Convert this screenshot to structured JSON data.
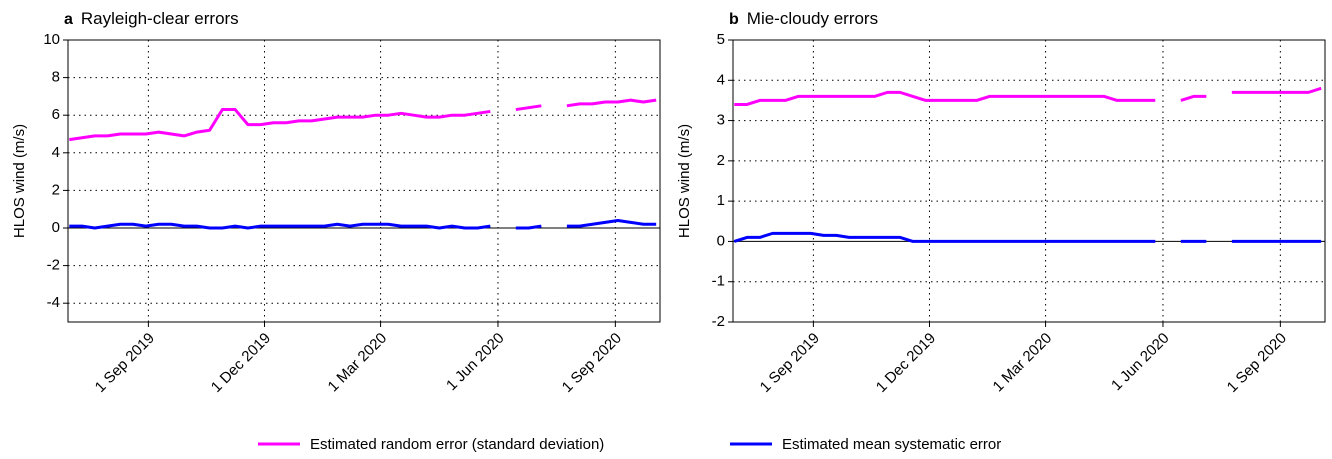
{
  "chart_data": [
    {
      "type": "line",
      "panel_label": "a",
      "title": "Rayleigh-clear errors",
      "ylabel": "HLOS wind (m/s)",
      "x": [
        "2019-07-01",
        "2019-07-11",
        "2019-07-21",
        "2019-07-31",
        "2019-08-10",
        "2019-08-20",
        "2019-08-30",
        "2019-09-09",
        "2019-09-19",
        "2019-09-29",
        "2019-10-09",
        "2019-10-19",
        "2019-10-29",
        "2019-11-08",
        "2019-11-18",
        "2019-11-28",
        "2019-12-08",
        "2019-12-18",
        "2019-12-28",
        "2020-01-07",
        "2020-01-17",
        "2020-01-27",
        "2020-02-06",
        "2020-02-16",
        "2020-02-26",
        "2020-03-07",
        "2020-03-17",
        "2020-03-27",
        "2020-04-06",
        "2020-04-16",
        "2020-04-26",
        "2020-05-06",
        "2020-05-16",
        "2020-05-26",
        "2020-06-05",
        "2020-06-15",
        "2020-06-25",
        "2020-07-05",
        "2020-07-15",
        "2020-07-25",
        "2020-08-04",
        "2020-08-14",
        "2020-08-24",
        "2020-09-03",
        "2020-09-13",
        "2020-09-23",
        "2020-10-03"
      ],
      "series": [
        {
          "name": "Estimated random error (standard deviation)",
          "color": "#ff00ff",
          "values": [
            4.7,
            4.8,
            4.9,
            4.9,
            5.0,
            5.0,
            5.0,
            5.1,
            5.0,
            4.9,
            5.1,
            5.2,
            6.3,
            6.3,
            5.5,
            5.5,
            5.6,
            5.6,
            5.7,
            5.7,
            5.8,
            5.9,
            5.9,
            5.9,
            6.0,
            6.0,
            6.1,
            6.0,
            5.9,
            5.9,
            6.0,
            6.0,
            6.1,
            6.2,
            null,
            6.3,
            6.4,
            6.5,
            null,
            6.5,
            6.6,
            6.6,
            6.7,
            6.7,
            6.8,
            6.7,
            6.8
          ]
        },
        {
          "name": "Estimated mean systematic error",
          "color": "#0000ff",
          "values": [
            0.1,
            0.1,
            0.0,
            0.1,
            0.2,
            0.2,
            0.1,
            0.2,
            0.2,
            0.1,
            0.1,
            0.0,
            0.0,
            0.1,
            0.0,
            0.1,
            0.1,
            0.1,
            0.1,
            0.1,
            0.1,
            0.2,
            0.1,
            0.2,
            0.2,
            0.2,
            0.1,
            0.1,
            0.1,
            0.0,
            0.1,
            0.0,
            0.0,
            0.1,
            null,
            0.0,
            0.0,
            0.1,
            null,
            0.1,
            0.1,
            0.2,
            0.3,
            0.4,
            0.3,
            0.2,
            0.2
          ]
        }
      ],
      "xlim": [
        "2019-06-30",
        "2020-10-06"
      ],
      "xticks": [
        {
          "value": "2019-09-01",
          "label": "1 Sep 2019"
        },
        {
          "value": "2019-12-01",
          "label": "1 Dec 2019"
        },
        {
          "value": "2020-03-01",
          "label": "1 Mar 2020"
        },
        {
          "value": "2020-06-01",
          "label": "1 Jun 2020"
        },
        {
          "value": "2020-09-01",
          "label": "1 Sep 2020"
        }
      ],
      "ylim": [
        -5,
        10
      ],
      "yticks": [
        -4,
        -2,
        0,
        2,
        4,
        6,
        8,
        10
      ],
      "grid": true
    },
    {
      "type": "line",
      "panel_label": "b",
      "title": "Mie-cloudy errors",
      "ylabel": "HLOS wind (m/s)",
      "x": [
        "2019-07-01",
        "2019-07-11",
        "2019-07-21",
        "2019-07-31",
        "2019-08-10",
        "2019-08-20",
        "2019-08-30",
        "2019-09-09",
        "2019-09-19",
        "2019-09-29",
        "2019-10-09",
        "2019-10-19",
        "2019-10-29",
        "2019-11-08",
        "2019-11-18",
        "2019-11-28",
        "2019-12-08",
        "2019-12-18",
        "2019-12-28",
        "2020-01-07",
        "2020-01-17",
        "2020-01-27",
        "2020-02-06",
        "2020-02-16",
        "2020-02-26",
        "2020-03-07",
        "2020-03-17",
        "2020-03-27",
        "2020-04-06",
        "2020-04-16",
        "2020-04-26",
        "2020-05-06",
        "2020-05-16",
        "2020-05-26",
        "2020-06-05",
        "2020-06-15",
        "2020-06-25",
        "2020-07-05",
        "2020-07-15",
        "2020-07-25",
        "2020-08-04",
        "2020-08-14",
        "2020-08-24",
        "2020-09-03",
        "2020-09-13",
        "2020-09-23",
        "2020-10-03"
      ],
      "series": [
        {
          "name": "Estimated random error (standard deviation)",
          "color": "#ff00ff",
          "values": [
            3.4,
            3.4,
            3.5,
            3.5,
            3.5,
            3.6,
            3.6,
            3.6,
            3.6,
            3.6,
            3.6,
            3.6,
            3.7,
            3.7,
            3.6,
            3.5,
            3.5,
            3.5,
            3.5,
            3.5,
            3.6,
            3.6,
            3.6,
            3.6,
            3.6,
            3.6,
            3.6,
            3.6,
            3.6,
            3.6,
            3.5,
            3.5,
            3.5,
            3.5,
            null,
            3.5,
            3.6,
            3.6,
            null,
            3.7,
            3.7,
            3.7,
            3.7,
            3.7,
            3.7,
            3.7,
            3.8
          ]
        },
        {
          "name": "Estimated mean systematic error",
          "color": "#0000ff",
          "values": [
            0.0,
            0.1,
            0.1,
            0.2,
            0.2,
            0.2,
            0.2,
            0.15,
            0.15,
            0.1,
            0.1,
            0.1,
            0.1,
            0.1,
            0.0,
            0.0,
            0.0,
            0.0,
            0.0,
            0.0,
            0.0,
            0.0,
            0.0,
            0.0,
            0.0,
            0.0,
            0.0,
            0.0,
            0.0,
            0.0,
            0.0,
            0.0,
            0.0,
            0.0,
            null,
            0.0,
            0.0,
            0.0,
            null,
            0.0,
            0.0,
            0.0,
            0.0,
            0.0,
            0.0,
            0.0,
            0.0
          ]
        }
      ],
      "xlim": [
        "2019-06-30",
        "2020-10-06"
      ],
      "xticks": [
        {
          "value": "2019-09-01",
          "label": "1 Sep 2019"
        },
        {
          "value": "2019-12-01",
          "label": "1 Dec 2019"
        },
        {
          "value": "2020-03-01",
          "label": "1 Mar 2020"
        },
        {
          "value": "2020-06-01",
          "label": "1 Jun 2020"
        },
        {
          "value": "2020-09-01",
          "label": "1 Sep 2020"
        }
      ],
      "ylim": [
        -2,
        5
      ],
      "yticks": [
        -2,
        -1,
        0,
        1,
        2,
        3,
        4,
        5
      ],
      "grid": true
    }
  ]
}
